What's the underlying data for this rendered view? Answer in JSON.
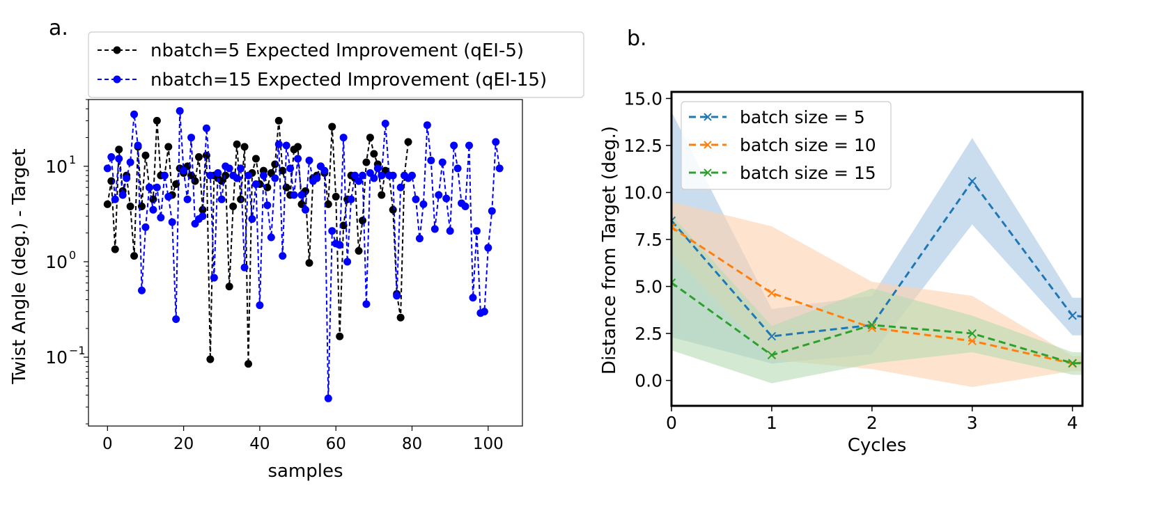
{
  "panel_labels": {
    "a": "a.",
    "b": "b."
  },
  "chart_data": [
    {
      "type": "line",
      "yscale": "log",
      "xlabel": "samples",
      "ylabel": "Twist Angle (deg.) - Target",
      "xlim": [
        -5,
        109
      ],
      "ylim": [
        0.019,
        50
      ],
      "xticks": [
        0,
        20,
        40,
        60,
        80,
        100
      ],
      "yticks": [
        {
          "value": 0.1,
          "base": "10",
          "exp": "−1"
        },
        {
          "value": 1,
          "base": "10",
          "exp": "0"
        },
        {
          "value": 10,
          "base": "10",
          "exp": "1"
        }
      ],
      "legend": "top (outside)",
      "series": [
        {
          "name": "nbatch=5 Expected Improvement (qEI-5)",
          "color": "#000000",
          "x_start": 0,
          "values": [
            4.0,
            7.0,
            1.35,
            15.0,
            5.5,
            8.0,
            3.8,
            1.15,
            16.0,
            3.8,
            13.0,
            6.0,
            4.5,
            30.0,
            8.0,
            8.0,
            16.0,
            5.0,
            6.5,
            9.5,
            8.5,
            10.0,
            8.0,
            7.0,
            12.5,
            3.5,
            13.0,
            0.095,
            8.0,
            7.5,
            7.0,
            8.0,
            0.55,
            3.8,
            17.0,
            4.5,
            16.0,
            0.085,
            8.5,
            12.0,
            6.5,
            9.0,
            6.0,
            8.5,
            10.5,
            30.0,
            9.0,
            6.0,
            5.0,
            15.0,
            16.0,
            4.0,
            5.5,
            0.97,
            7.5,
            8.0,
            10.0,
            8.5,
            4.0,
            26.0,
            4.8,
            0.165,
            2.4,
            4.5,
            8.0,
            7.5,
            1.3,
            2.7,
            11.0,
            20.0,
            13.5,
            10.5,
            5.0,
            9.0,
            8.0,
            3.5,
            0.46,
            0.26,
            8.0,
            18.0
          ]
        },
        {
          "name": "nbatch=15 Expected Improvement (qEI-15)",
          "color": "#0000ff",
          "x_start": 0,
          "values": [
            9.5,
            12.5,
            4.5,
            12.0,
            5.0,
            7.5,
            11.0,
            35.0,
            16.5,
            0.5,
            2.3,
            6.0,
            3.5,
            6.0,
            2.9,
            8.0,
            4.8,
            2.6,
            0.25,
            38.0,
            9.0,
            4.5,
            20.0,
            2.5,
            2.8,
            3.0,
            25.0,
            8.0,
            0.68,
            8.5,
            4.5,
            10.0,
            9.5,
            8.0,
            7.5,
            9.5,
            0.87,
            8.0,
            2.8,
            6.5,
            0.35,
            8.0,
            3.9,
            1.8,
            7.5,
            17.0,
            1.15,
            16.5,
            9.5,
            5.0,
            12.0,
            5.0,
            3.5,
            11.5,
            7.0,
            7.5,
            10.0,
            9.0,
            0.037,
            2.1,
            1.55,
            1.5,
            20.0,
            1.0,
            4.5,
            8.0,
            7.0,
            8.0,
            0.36,
            8.5,
            7.5,
            9.5,
            8.0,
            28.0,
            8.0,
            8.0,
            0.44,
            6.0,
            8.0,
            7.5,
            8.0,
            4.5,
            1.75,
            4.0,
            27.0,
            11.5,
            2.2,
            5.0,
            11.0,
            4.6,
            2.1,
            16.5,
            9.5,
            4.1,
            3.8,
            16.5,
            0.42,
            2.1,
            0.29,
            0.3,
            1.4,
            3.4,
            18.0,
            9.5
          ]
        }
      ]
    },
    {
      "type": "line",
      "xlabel": "Cycles",
      "ylabel": "Distance from Target (deg.)",
      "xlim": [
        0,
        4.1
      ],
      "ylim": [
        -1.35,
        15.35
      ],
      "xticks": [
        0,
        1,
        2,
        3,
        4
      ],
      "yticks": [
        0.0,
        2.5,
        5.0,
        7.5,
        10.0,
        12.5,
        15.0
      ],
      "legend": "upper-left",
      "categories": [
        0,
        1,
        2,
        3,
        4,
        4.1
      ],
      "series": [
        {
          "name": "batch size = 5",
          "color": "#1f77b4",
          "fill": "#a6c6e2",
          "values": [
            8.5,
            2.35,
            2.95,
            10.6,
            3.45,
            3.4
          ],
          "lower": [
            2.3,
            0.9,
            1.4,
            8.3,
            2.4,
            2.4
          ],
          "upper": [
            14.3,
            3.8,
            4.5,
            12.9,
            4.4,
            4.4
          ]
        },
        {
          "name": "batch size = 10",
          "color": "#ff7f0e",
          "fill": "#fdd2ad",
          "values": [
            8.15,
            4.65,
            2.8,
            2.1,
            0.9,
            0.95
          ],
          "lower": [
            6.8,
            1.1,
            0.6,
            -0.35,
            0.5,
            0.5
          ],
          "upper": [
            9.5,
            8.2,
            5.25,
            4.5,
            1.3,
            1.3
          ]
        },
        {
          "name": "batch size = 15",
          "color": "#2ca02c",
          "fill": "#b6dbb2",
          "values": [
            5.2,
            1.35,
            2.95,
            2.5,
            0.92,
            0.92
          ],
          "lower": [
            1.6,
            -0.15,
            0.9,
            1.5,
            0.3,
            0.3
          ],
          "upper": [
            8.8,
            2.9,
            4.9,
            3.45,
            1.5,
            1.5
          ]
        }
      ]
    }
  ]
}
